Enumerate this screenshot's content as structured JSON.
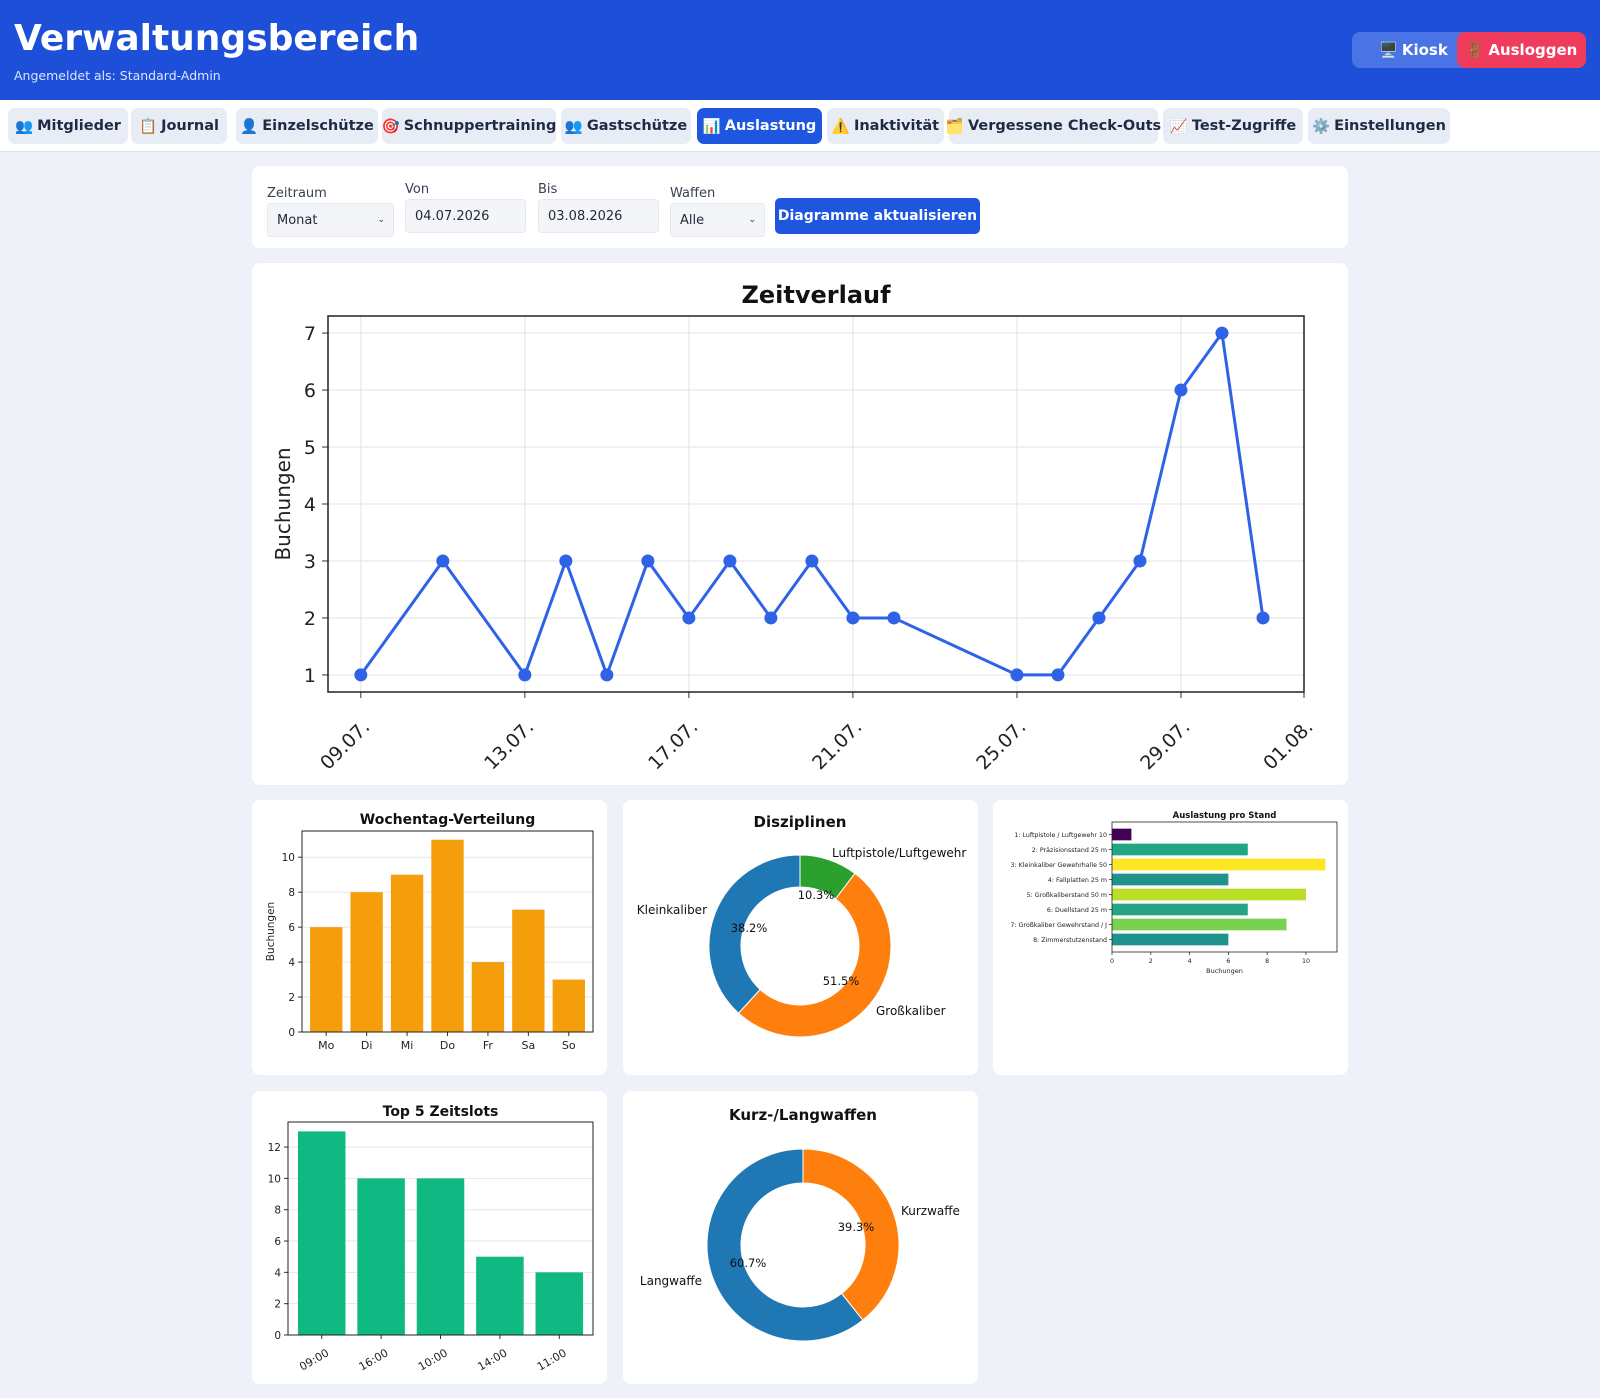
{
  "header": {
    "title": "Verwaltungsbereich",
    "subtitle": "Angemeldet als: Standard-Admin",
    "kiosk": {
      "icon": "🖥️",
      "label": "Kiosk"
    },
    "logout": {
      "icon": "🚪",
      "label": "Ausloggen"
    }
  },
  "tabs": [
    {
      "icon": "👥",
      "label": "Mitglieder"
    },
    {
      "icon": "📋",
      "label": "Journal"
    },
    {
      "icon": "👤",
      "label": "Einzelschütze"
    },
    {
      "icon": "🎯",
      "label": "Schnuppertraining"
    },
    {
      "icon": "👥",
      "label": "Gastschütze"
    },
    {
      "icon": "📊",
      "label": "Auslastung"
    },
    {
      "icon": "⚠️",
      "label": "Inaktivität"
    },
    {
      "icon": "🗂️",
      "label": "Vergessene Check-Outs"
    },
    {
      "icon": "📈",
      "label": "Test-Zugriffe"
    },
    {
      "icon": "⚙️",
      "label": "Einstellungen"
    }
  ],
  "filters": {
    "zeitraum": {
      "label": "Zeitraum",
      "value": "Monat"
    },
    "von": {
      "label": "Von",
      "value": "04.07.2026"
    },
    "bis": {
      "label": "Bis",
      "value": "03.08.2026"
    },
    "waffen": {
      "label": "Waffen",
      "value": "Alle"
    },
    "update_label": "Diagramme aktualisieren"
  },
  "colors": {
    "line": "#2f63e6",
    "weekday": "#f59e0b",
    "slots": "#10b981",
    "donut_blue": "#1f77b4",
    "donut_orange": "#ff7f0e",
    "donut_green": "#2ca02c"
  },
  "chart_data": [
    {
      "type": "line",
      "title": "Zeitverlauf",
      "ylabel": "Buchungen",
      "xlabel": "",
      "x": [
        "09.07.",
        "11.07.",
        "13.07.",
        "14.07.",
        "15.07.",
        "16.07.",
        "17.07.",
        "18.07.",
        "19.07.",
        "20.07.",
        "21.07.",
        "22.07.",
        "25.07.",
        "26.07.",
        "27.07.",
        "28.07.",
        "29.07.",
        "30.07.",
        "31.07."
      ],
      "values": [
        1,
        3,
        1,
        3,
        1,
        3,
        2,
        3,
        2,
        3,
        2,
        2,
        1,
        1,
        2,
        3,
        6,
        7,
        2
      ],
      "xticks": [
        "09.07.",
        "13.07.",
        "17.07.",
        "21.07.",
        "25.07.",
        "29.07.",
        "01.08."
      ],
      "yticks": [
        1,
        2,
        3,
        4,
        5,
        6,
        7
      ],
      "grid": true
    },
    {
      "type": "bar",
      "title": "Wochentag-Verteilung",
      "ylabel": "Buchungen",
      "categories": [
        "Mo",
        "Di",
        "Mi",
        "Do",
        "Fr",
        "Sa",
        "So"
      ],
      "values": [
        6,
        8,
        9,
        11,
        4,
        7,
        3
      ],
      "yticks": [
        0,
        2,
        4,
        6,
        8,
        10
      ],
      "ylim": [
        0,
        11.5
      ],
      "grid": true
    },
    {
      "type": "pie",
      "title": "Disziplinen",
      "slices": [
        {
          "label": "Luftpistole/Luftgewehr",
          "pct": "10.3%",
          "value": 10.3
        },
        {
          "label": "Großkaliber",
          "pct": "51.5%",
          "value": 51.5
        },
        {
          "label": "Kleinkaliber",
          "pct": "38.2%",
          "value": 38.2
        }
      ]
    },
    {
      "type": "bar",
      "orientation": "horizontal",
      "title": "Auslastung pro Stand",
      "xlabel": "Buchungen",
      "categories": [
        "1: Luftpistole / Luftgewehr 10",
        "2: Präzisionsstand 25 m",
        "3: Kleinkaliber Gewehrhalle 50",
        "4: Fallplatten 25 m",
        "5: Großkaliberstand 50 m",
        "6: Duellstand 25 m",
        "7: Großkaliber Gewehrstand / J",
        "8: Zimmerstutzenstand"
      ],
      "values": [
        1,
        7,
        11,
        6,
        10,
        7,
        9,
        6
      ],
      "colors": [
        "#440154",
        "#21a685",
        "#fde725",
        "#20928c",
        "#bade28",
        "#25a584",
        "#7ad151",
        "#20928c"
      ],
      "xticks": [
        0,
        2,
        4,
        6,
        8,
        10
      ],
      "xlim": [
        0,
        11.6
      ]
    },
    {
      "type": "bar",
      "title": "Top 5 Zeitslots",
      "categories": [
        "09:00",
        "16:00",
        "10:00",
        "14:00",
        "11:00"
      ],
      "values": [
        13,
        10,
        10,
        5,
        4
      ],
      "yticks": [
        0,
        2,
        4,
        6,
        8,
        10,
        12
      ],
      "ylim": [
        0,
        13.6
      ],
      "grid": true
    },
    {
      "type": "pie",
      "title": "Kurz-/Langwaffen",
      "slices": [
        {
          "label": "Kurzwaffe",
          "pct": "39.3%",
          "value": 39.3
        },
        {
          "label": "Langwaffe",
          "pct": "60.7%",
          "value": 60.7
        }
      ]
    }
  ]
}
